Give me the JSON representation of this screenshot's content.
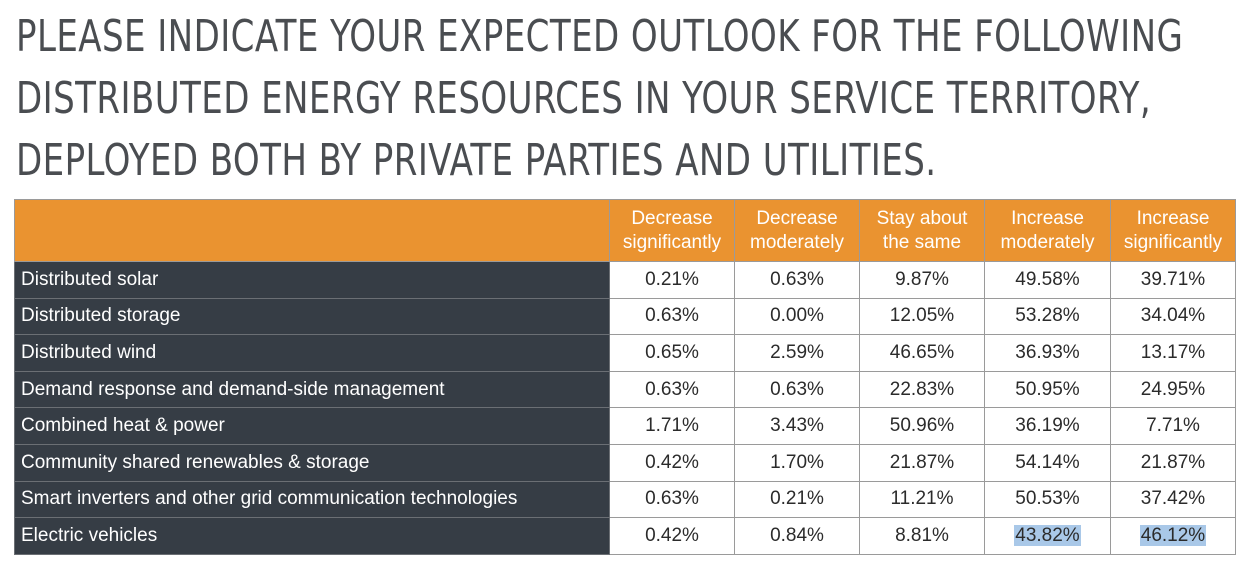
{
  "chart_data": {
    "type": "table",
    "title_lines": [
      "PLEASE INDICATE YOUR EXPECTED OUTLOOK FOR THE FOLLOWING",
      "DISTRIBUTED ENERGY RESOURCES IN YOUR SERVICE TERRITORY,",
      "DEPLOYED BOTH BY PRIVATE PARTIES AND UTILITIES."
    ],
    "columns": [
      {
        "line1": "Decrease",
        "line2": "significantly"
      },
      {
        "line1": "Decrease",
        "line2": "moderately"
      },
      {
        "line1": "Stay about",
        "line2": "the same"
      },
      {
        "line1": "Increase",
        "line2": "moderately"
      },
      {
        "line1": "Increase",
        "line2": "significantly"
      }
    ],
    "rows": [
      {
        "label": "Distributed solar",
        "values": [
          "0.21%",
          "0.63%",
          "9.87%",
          "49.58%",
          "39.71%"
        ]
      },
      {
        "label": "Distributed storage",
        "values": [
          "0.63%",
          "0.00%",
          "12.05%",
          "53.28%",
          "34.04%"
        ]
      },
      {
        "label": "Distributed wind",
        "values": [
          "0.65%",
          "2.59%",
          "46.65%",
          "36.93%",
          "13.17%"
        ]
      },
      {
        "label": "Demand response and demand-side management",
        "values": [
          "0.63%",
          "0.63%",
          "22.83%",
          "50.95%",
          "24.95%"
        ]
      },
      {
        "label": "Combined heat & power",
        "values": [
          "1.71%",
          "3.43%",
          "50.96%",
          "36.19%",
          "7.71%"
        ]
      },
      {
        "label": "Community shared renewables & storage",
        "values": [
          "0.42%",
          "1.70%",
          "21.87%",
          "54.14%",
          "21.87%"
        ]
      },
      {
        "label": "Smart inverters and other grid communication technologies",
        "values": [
          "0.63%",
          "0.21%",
          "11.21%",
          "50.53%",
          "37.42%"
        ]
      },
      {
        "label": "Electric vehicles",
        "values": [
          "0.42%",
          "0.84%",
          "8.81%",
          "43.82%",
          "46.12%"
        ]
      }
    ],
    "highlighted_cells": [
      [
        7,
        3
      ],
      [
        7,
        4
      ]
    ],
    "colors": {
      "header_bg": "#ea9330",
      "row_label_bg": "#363d45",
      "highlight": "#a9c8e8",
      "title_text": "#4a4d51"
    }
  }
}
